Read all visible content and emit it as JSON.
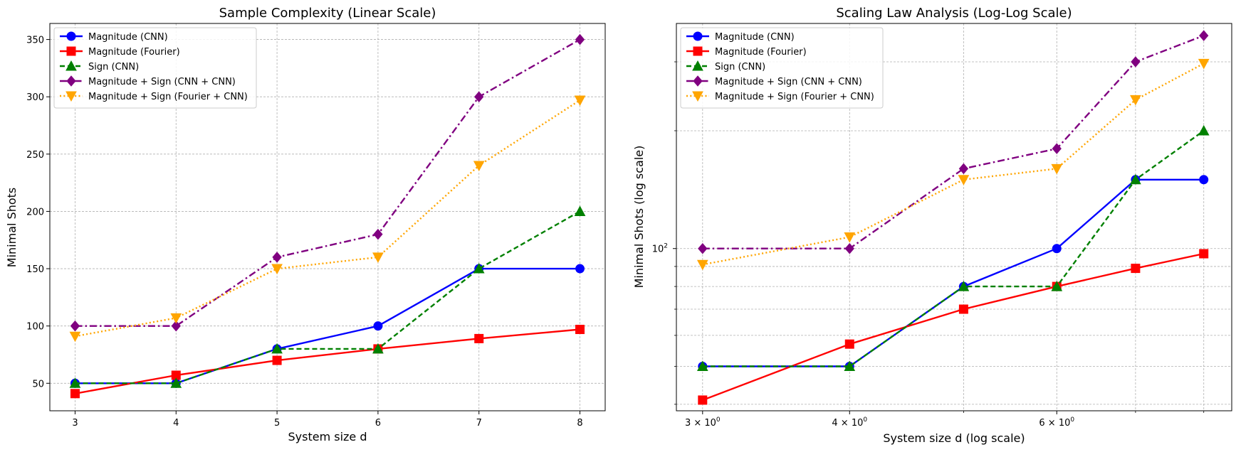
{
  "chart_data": [
    {
      "type": "line",
      "title": "Sample Complexity (Linear Scale)",
      "xlabel": "System size d",
      "ylabel": "Minimal Shots",
      "x": [
        3,
        4,
        5,
        6,
        7,
        8
      ],
      "xticks": [
        "3",
        "4",
        "5",
        "6",
        "7",
        "8"
      ],
      "yticks": [
        "50",
        "100",
        "150",
        "200",
        "250",
        "300",
        "350"
      ],
      "xlim": [
        2.75,
        8.25
      ],
      "ylim": [
        26,
        364
      ],
      "xscale": "linear",
      "yscale": "linear",
      "grid": true,
      "legend": "top-left",
      "series": [
        {
          "name": "Magnitude (CNN)",
          "values": [
            50,
            50,
            80,
            100,
            150,
            150
          ],
          "color": "#0000ff",
          "marker": "circle",
          "linestyle": "solid"
        },
        {
          "name": "Magnitude (Fourier)",
          "values": [
            41,
            57,
            70,
            80,
            89,
            97
          ],
          "color": "#ff0000",
          "marker": "square",
          "linestyle": "solid"
        },
        {
          "name": "Sign (CNN)",
          "values": [
            50,
            50,
            80,
            80,
            150,
            200
          ],
          "color": "#008000",
          "marker": "triangle-up",
          "linestyle": "dashed"
        },
        {
          "name": "Magnitude + Sign (CNN + CNN)",
          "values": [
            100,
            100,
            160,
            180,
            300,
            350
          ],
          "color": "#800080",
          "marker": "diamond",
          "linestyle": "dashdot"
        },
        {
          "name": "Magnitude + Sign (Fourier + CNN)",
          "values": [
            91,
            107,
            150,
            160,
            240,
            297
          ],
          "color": "#ffa500",
          "marker": "triangle-down",
          "linestyle": "dotted"
        }
      ]
    },
    {
      "type": "line",
      "title": "Scaling Law Analysis (Log-Log Scale)",
      "xlabel": "System size d (log scale)",
      "ylabel": "Minimal Shots (log scale)",
      "x": [
        3,
        4,
        5,
        6,
        7,
        8
      ],
      "xticks": [
        {
          "value": 3,
          "base": "3 × 10",
          "exp": "0"
        },
        {
          "value": 4,
          "base": "4 × 10",
          "exp": "0"
        },
        {
          "value": 6,
          "base": "6 × 10",
          "exp": "0"
        }
      ],
      "yticks": [
        {
          "value": 100,
          "base": "10",
          "exp": "2"
        }
      ],
      "xlim": [
        2.85,
        8.45
      ],
      "ylim": [
        38.5,
        376
      ],
      "xscale": "log",
      "yscale": "log",
      "grid": true,
      "legend": "top-left",
      "series": [
        {
          "name": "Magnitude (CNN)",
          "values": [
            50,
            50,
            80,
            100,
            150,
            150
          ],
          "color": "#0000ff",
          "marker": "circle",
          "linestyle": "solid"
        },
        {
          "name": "Magnitude (Fourier)",
          "values": [
            41,
            57,
            70,
            80,
            89,
            97
          ],
          "color": "#ff0000",
          "marker": "square",
          "linestyle": "solid"
        },
        {
          "name": "Sign (CNN)",
          "values": [
            50,
            50,
            80,
            80,
            150,
            200
          ],
          "color": "#008000",
          "marker": "triangle-up",
          "linestyle": "dashed"
        },
        {
          "name": "Magnitude + Sign (CNN + CNN)",
          "values": [
            100,
            100,
            160,
            180,
            300,
            350
          ],
          "color": "#800080",
          "marker": "diamond",
          "linestyle": "dashdot"
        },
        {
          "name": "Magnitude + Sign (Fourier + CNN)",
          "values": [
            91,
            107,
            150,
            160,
            240,
            297
          ],
          "color": "#ffa500",
          "marker": "triangle-down",
          "linestyle": "dotted"
        }
      ]
    }
  ]
}
